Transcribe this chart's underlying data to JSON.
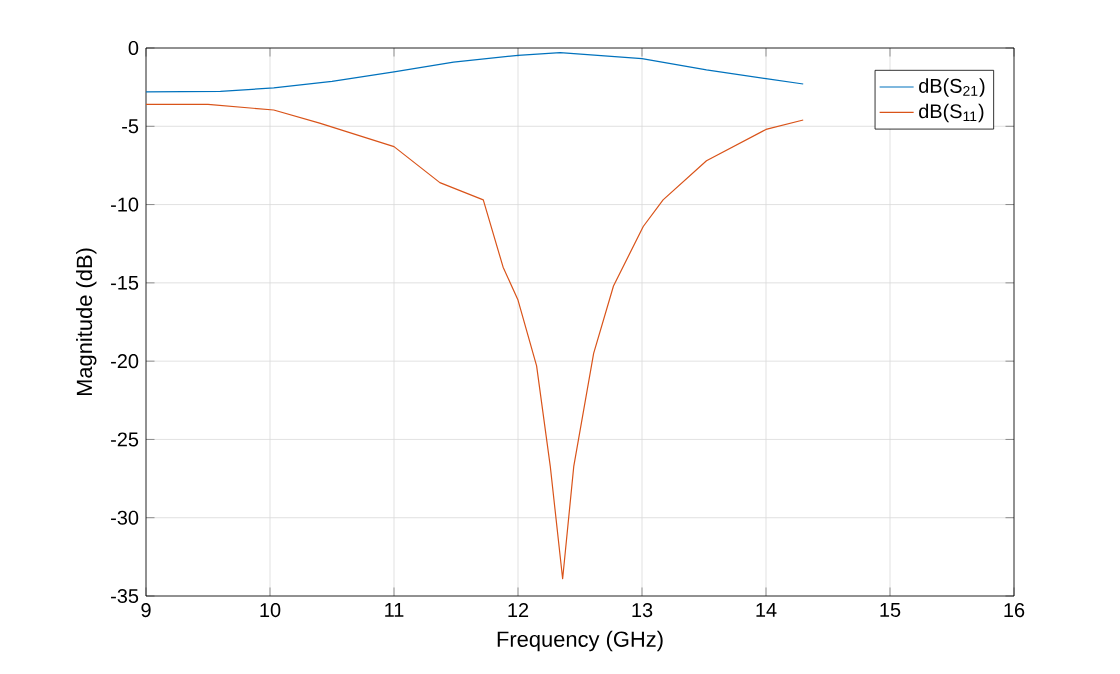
{
  "chart_data": {
    "type": "line",
    "xlabel": "Frequency (GHz)",
    "ylabel": "Magnitude (dB)",
    "xlim": [
      9,
      16
    ],
    "ylim": [
      -35,
      0
    ],
    "xticks": [
      9,
      10,
      11,
      12,
      13,
      14,
      15,
      16
    ],
    "yticks": [
      -35,
      -30,
      -25,
      -20,
      -15,
      -10,
      -5,
      0
    ],
    "grid": true,
    "legend": "top right",
    "series": [
      {
        "name": "dB(S$_{21}$)",
        "color": "#0072bd",
        "x": [
          9.0,
          9.6,
          10.03,
          10.5,
          11.0,
          11.48,
          12.0,
          12.34,
          13.0,
          13.52,
          14.0,
          14.3
        ],
        "values": [
          -2.8,
          -2.77,
          -2.55,
          -2.13,
          -1.53,
          -0.9,
          -0.47,
          -0.3,
          -0.68,
          -1.4,
          -1.96,
          -2.3
        ]
      },
      {
        "name": "dB(S$_{11}$)",
        "color": "#d95319",
        "x": [
          9.0,
          9.5,
          10.03,
          10.4,
          11.0,
          11.37,
          11.72,
          11.88,
          12.0,
          12.15,
          12.26,
          12.36,
          12.45,
          12.61,
          12.77,
          13.01,
          13.17,
          13.52,
          14.0,
          14.3
        ],
        "values": [
          -3.6,
          -3.6,
          -3.96,
          -4.8,
          -6.3,
          -8.6,
          -9.7,
          -14.0,
          -16.1,
          -20.3,
          -26.7,
          -33.9,
          -26.7,
          -19.5,
          -15.2,
          -11.4,
          -9.7,
          -7.2,
          -5.2,
          -4.6
        ]
      }
    ]
  }
}
